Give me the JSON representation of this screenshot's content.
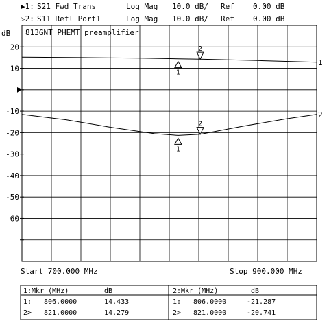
{
  "header": {
    "ch1": {
      "marker": "▶1:",
      "label": "S21 Fwd Trans",
      "format": "Log Mag",
      "scale": "10.0 dB/",
      "ref_label": "Ref",
      "ref_value": "0.00 dB"
    },
    "ch2": {
      "marker": "▷2:",
      "label": "S11 Refl Port1",
      "format": "Log Mag",
      "scale": "10.0 dB/",
      "ref_label": "Ref",
      "ref_value": "0.00 dB"
    }
  },
  "chart_data": {
    "type": "line",
    "title": "813GNT PHEMT preamplifier",
    "ylabel": "dB",
    "xlim": [
      700,
      900
    ],
    "ylim": [
      -80,
      30
    ],
    "yticks": [
      20,
      10,
      -10,
      -20,
      -30,
      -40,
      -50,
      -60
    ],
    "ytick_labels": [
      "20",
      "10",
      "-10",
      "-20",
      "-30",
      "-40",
      "-50",
      "-60"
    ],
    "reference_level": 0,
    "grid": true,
    "start_label": "Start 700.000 MHz",
    "stop_label": "Stop 900.000 MHz",
    "series": [
      {
        "name": "1",
        "x": [
          700,
          740,
          780,
          806,
          821,
          860,
          900
        ],
        "y": [
          15.2,
          15.0,
          14.7,
          14.433,
          14.279,
          13.6,
          12.8
        ]
      },
      {
        "name": "2",
        "x": [
          700,
          730,
          760,
          790,
          806,
          821,
          850,
          880,
          900
        ],
        "y": [
          -11.5,
          -14.0,
          -17.5,
          -20.5,
          -21.287,
          -20.741,
          -17.0,
          -13.5,
          -11.5
        ]
      }
    ],
    "markers": [
      {
        "series": 1,
        "label": "1",
        "x": 806,
        "y": 14.433,
        "style": "up"
      },
      {
        "series": 1,
        "label": "2",
        "x": 821,
        "y": 14.279,
        "style": "down"
      },
      {
        "series": 2,
        "label": "1",
        "x": 806,
        "y": -21.287,
        "style": "up"
      },
      {
        "series": 2,
        "label": "2",
        "x": 821,
        "y": -20.741,
        "style": "down"
      }
    ]
  },
  "marker_table": {
    "left": {
      "header": "1:Mkr (MHz)",
      "unit": "dB",
      "rows": [
        {
          "id": "1:",
          "freq": "806.0000",
          "val": "14.433"
        },
        {
          "id": "2>",
          "freq": "821.0000",
          "val": "14.279"
        }
      ]
    },
    "right": {
      "header": "2:Mkr (MHz)",
      "unit": "dB",
      "rows": [
        {
          "id": "1:",
          "freq": "806.0000",
          "val": "-21.287"
        },
        {
          "id": "2>",
          "freq": "821.0000",
          "val": "-20.741"
        }
      ]
    }
  }
}
